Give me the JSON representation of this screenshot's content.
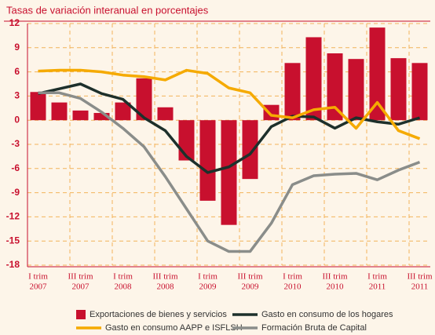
{
  "chart_data": {
    "type": "bar_line",
    "title": "Tasas de variación interanual en porcentajes",
    "categories": [
      "I trim",
      null,
      "III trim",
      null,
      "I trim",
      null,
      "III trim",
      null,
      "I trim",
      null,
      "III trim",
      null,
      "I trim",
      null,
      "III trim",
      null,
      "I trim",
      null,
      "III trim"
    ],
    "category_years": [
      "2007",
      null,
      "2007",
      null,
      "2008",
      null,
      "2008",
      null,
      "2009",
      null,
      "2009",
      null,
      "2010",
      null,
      "2010",
      null,
      "2011",
      null,
      "2011"
    ],
    "series": [
      {
        "name": "Exportaciones de bienes y servicios",
        "kind": "bar",
        "color": "#c8102e",
        "values": [
          3.5,
          2.2,
          1.2,
          0.9,
          2.2,
          5.2,
          1.6,
          -5.0,
          -10.0,
          -13.0,
          -7.3,
          1.9,
          7.1,
          10.3,
          8.3,
          7.6,
          11.5,
          7.7,
          7.1
        ]
      },
      {
        "name": "Gasto en consumo de los hogares",
        "kind": "line",
        "color": "#1d302b",
        "values": [
          3.3,
          3.9,
          4.5,
          3.3,
          2.6,
          0.3,
          -1.3,
          -4.5,
          -6.5,
          -5.8,
          -4.2,
          -0.8,
          0.5,
          0.4,
          -1.0,
          0.3,
          -0.2,
          -0.5,
          0.3
        ]
      },
      {
        "name": "Gasto en consumo AAPP e ISFLSH",
        "kind": "line",
        "color": "#f5aa00",
        "values": [
          6.1,
          6.2,
          6.2,
          6.0,
          5.6,
          5.4,
          5.0,
          6.2,
          5.8,
          4.0,
          3.4,
          0.6,
          0.3,
          1.3,
          1.6,
          -1.0,
          2.2,
          -1.3,
          -2.3
        ]
      },
      {
        "name": "Formación Bruta de Capital",
        "kind": "line",
        "color": "#8a8d8a",
        "values": [
          3.4,
          3.4,
          2.7,
          1.0,
          -1.0,
          -3.3,
          -7.0,
          -11.0,
          -15.0,
          -16.3,
          -16.3,
          -12.8,
          -8.0,
          -6.9,
          -6.7,
          -6.6,
          -7.4,
          -6.2,
          -5.2
        ]
      }
    ],
    "ylim": [
      -18,
      12
    ],
    "yticks": [
      12,
      9,
      6,
      3,
      0,
      -3,
      -6,
      -9,
      -12,
      -15,
      -18
    ],
    "grid": true
  }
}
